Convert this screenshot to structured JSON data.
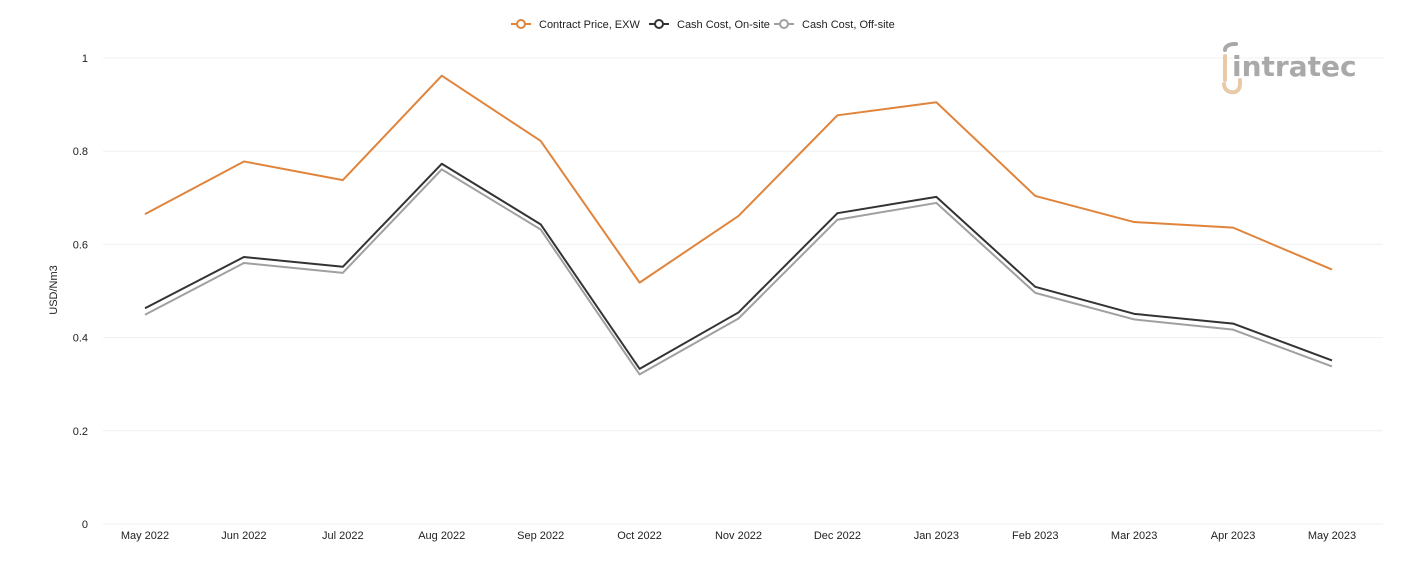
{
  "chart_data": {
    "type": "line",
    "categories": [
      "May 2022",
      "Jun 2022",
      "Jul 2022",
      "Aug 2022",
      "Sep 2022",
      "Oct 2022",
      "Nov 2022",
      "Dec 2022",
      "Jan 2023",
      "Feb 2023",
      "Mar 2023",
      "Apr 2023",
      "May 2023"
    ],
    "series": [
      {
        "name": "Contract Price, EXW",
        "color": "#e0843c",
        "values": [
          0.665,
          0.778,
          0.738,
          0.962,
          0.822,
          0.518,
          0.661,
          0.877,
          0.905,
          0.704,
          0.648,
          0.636,
          0.546
        ]
      },
      {
        "name": "Cash Cost, On-site",
        "color": "#333333",
        "values": [
          0.463,
          0.573,
          0.552,
          0.773,
          0.643,
          0.333,
          0.454,
          0.667,
          0.702,
          0.509,
          0.451,
          0.43,
          0.351
        ]
      },
      {
        "name": "Cash Cost, Off-site",
        "color": "#a0a0a0",
        "values": [
          0.449,
          0.56,
          0.539,
          0.761,
          0.632,
          0.321,
          0.441,
          0.653,
          0.689,
          0.496,
          0.439,
          0.417,
          0.338
        ]
      }
    ],
    "ylabel": "USD/Nm3",
    "yticks": [
      0,
      0.2,
      0.4,
      0.6,
      0.8,
      1
    ],
    "ytick_labels": [
      "0",
      "0.2",
      "0.4",
      "0.6",
      "0.8",
      "1"
    ],
    "ylim": [
      0,
      1
    ],
    "grid": true,
    "legend_position": "top-center"
  },
  "logo": {
    "text": "intratec",
    "name": "intratec-logo"
  }
}
